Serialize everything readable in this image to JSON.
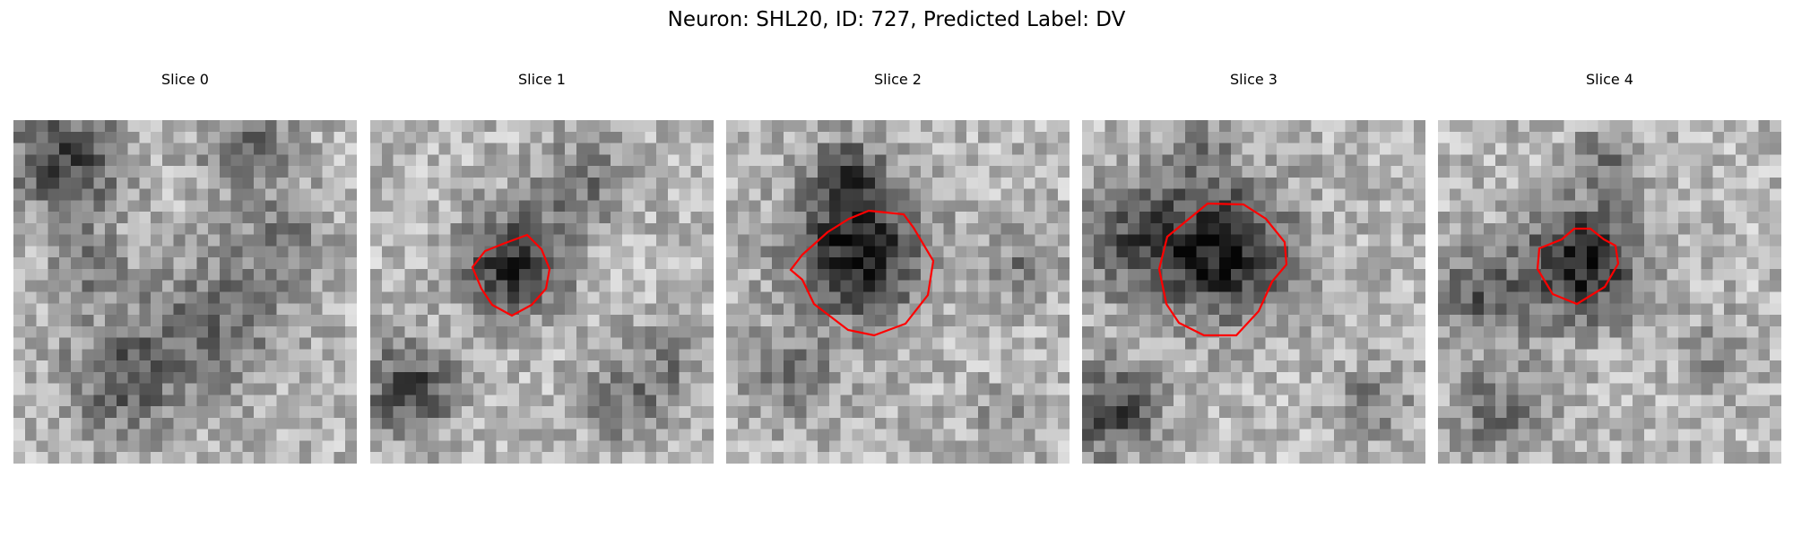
{
  "figure": {
    "title": "Neuron: SHL20, ID: 727, Predicted Label: DV"
  },
  "slices": [
    {
      "title": "Slice 0",
      "has_contour": false
    },
    {
      "title": "Slice 1",
      "has_contour": true
    },
    {
      "title": "Slice 2",
      "has_contour": true
    },
    {
      "title": "Slice 3",
      "has_contour": true
    },
    {
      "title": "Slice 4",
      "has_contour": true
    }
  ],
  "colors": {
    "contour": "#ff0000",
    "background": "#ffffff"
  },
  "colormap": "gray"
}
